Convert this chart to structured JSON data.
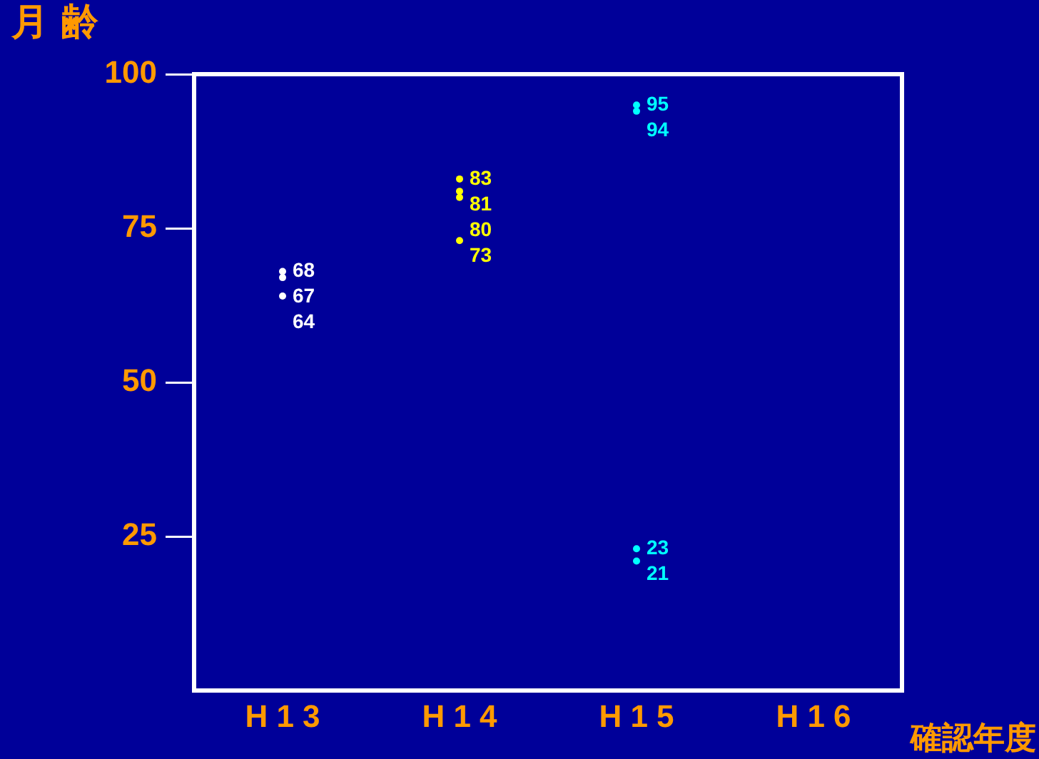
{
  "chart_data": {
    "type": "scatter",
    "xlabel": "確認年度",
    "ylabel": "月 齢",
    "categories": [
      "H 1 3",
      "H 1 4",
      "H 1 5",
      "H 1 6"
    ],
    "series": [
      {
        "color": "#ffffff",
        "x": [
          "H 1 3",
          "H 1 3",
          "H 1 3"
        ],
        "values": [
          68,
          67,
          64
        ]
      },
      {
        "color": "#ffff00",
        "x": [
          "H 1 4",
          "H 1 4",
          "H 1 4",
          "H 1 4"
        ],
        "values": [
          83,
          81,
          80,
          73
        ]
      },
      {
        "color": "#00ffff",
        "x": [
          "H 1 5",
          "H 1 5",
          "H 1 5",
          "H 1 5"
        ],
        "values": [
          95,
          94,
          23,
          21
        ]
      }
    ],
    "ylim": [
      0,
      100
    ],
    "yticks": [
      25,
      50,
      75,
      100
    ],
    "marker": "circle",
    "data_labels": true,
    "grid": false,
    "legend": false
  }
}
